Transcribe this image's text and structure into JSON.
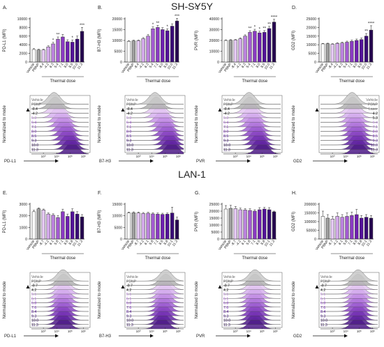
{
  "figure": {
    "top_title": "SH-SY5Y",
    "bottom_title": "LAN-1"
  },
  "colors": {
    "vehicle": "#ffffff",
    "pbnp": "#9e9e9e",
    "grey": "#6e6e6e",
    "palette": [
      "#e4c8f2",
      "#d3a9ea",
      "#bb82dd",
      "#a35bd1",
      "#8a3ac2",
      "#6e1fb0",
      "#54129a",
      "#3a0a78",
      "#260650"
    ],
    "hist_fill": [
      "#c9c9c9",
      "#b0b0b0",
      "#e4c8f2",
      "#d6b0ee",
      "#c593e6",
      "#b47add",
      "#a060d2",
      "#8c48c4",
      "#7834b6",
      "#6426a4",
      "#4f1b88"
    ],
    "dark": "#111111"
  },
  "chart_data": [
    {
      "type": "bar",
      "id": "A",
      "panel_label": "A.",
      "row": 0,
      "ylabel": "PD-L1 (MFI)",
      "ylim": [
        0,
        10000
      ],
      "yticks": [
        0,
        2000,
        4000,
        6000,
        8000,
        10000
      ],
      "categories": [
        "Vehicle",
        "PBNP",
        "-8.4",
        "-4.2",
        "6.3",
        "5.4",
        "7.1",
        "8.0",
        "8.5",
        "10.0",
        "11.3"
      ],
      "values": [
        2900,
        2800,
        2800,
        3500,
        4200,
        5300,
        5800,
        4700,
        4600,
        5300,
        7100
      ],
      "errors": [
        200,
        150,
        150,
        250,
        350,
        500,
        600,
        450,
        500,
        700,
        900
      ],
      "sig": [
        "",
        "",
        "",
        "",
        "*",
        "**",
        "",
        "",
        "*",
        "",
        "***"
      ],
      "xgroup_label": "Thermal dose",
      "hist": {
        "xlabel": "PD-L1",
        "ylabel": "Normalized to mode",
        "top_labels": [
          "Vehicle",
          "PBNP"
        ],
        "labels": [
          "-8.4",
          "-4.2",
          "5.3",
          "6.4",
          "7.1",
          "8.0",
          "8.5",
          "9.3",
          "10.0",
          "11.3"
        ],
        "centers": [
          0.4,
          0.42,
          0.44,
          0.48,
          0.52,
          0.55,
          0.57,
          0.6,
          0.62,
          0.65,
          0.68,
          0.7
        ]
      }
    },
    {
      "type": "bar",
      "id": "B",
      "panel_label": "B.",
      "row": 0,
      "ylabel": "B7-H3 (MFI)",
      "ylim": [
        0,
        20000
      ],
      "yticks": [
        0,
        5000,
        10000,
        15000,
        20000
      ],
      "categories": [
        "Vehicle",
        "PBNP",
        "-8.4",
        "-4.2",
        "6.3",
        "5.4",
        "7.1",
        "8.0",
        "8.5",
        "10.0",
        "11.3"
      ],
      "values": [
        9600,
        9800,
        9900,
        10800,
        12000,
        15400,
        16000,
        15000,
        14500,
        16600,
        19000
      ],
      "errors": [
        300,
        300,
        300,
        500,
        700,
        900,
        1000,
        900,
        900,
        1100,
        1200
      ],
      "sig": [
        "",
        "",
        "",
        "",
        "",
        "*",
        "**",
        "",
        "*",
        "",
        "***"
      ],
      "xgroup_label": "Thermal dose",
      "hist": {
        "xlabel": "B7-H3",
        "ylabel": "Normalized to mode",
        "top_labels": [
          "Vehicle",
          "PBNP"
        ],
        "labels": [
          "-8.4",
          "-4.2",
          "5.3",
          "6.4",
          "7.1",
          "8.0",
          "8.5",
          "9.3",
          "10.0",
          "11.3"
        ],
        "centers": [
          0.5,
          0.52,
          0.55,
          0.58,
          0.62,
          0.65,
          0.67,
          0.7,
          0.72,
          0.74,
          0.76,
          0.78
        ]
      }
    },
    {
      "type": "bar",
      "id": "C",
      "panel_label": "C.",
      "row": 0,
      "ylabel": "PVR (MFI)",
      "ylim": [
        0,
        40000
      ],
      "yticks": [
        0,
        10000,
        20000,
        30000,
        40000
      ],
      "categories": [
        "Vehicle",
        "PBNP",
        "-8.4",
        "-4.2",
        "6.3",
        "5.4",
        "7.1",
        "8.0",
        "8.5",
        "10.0",
        "11.3"
      ],
      "values": [
        20000,
        20200,
        20400,
        21500,
        24000,
        27500,
        28500,
        27000,
        27500,
        31000,
        37000
      ],
      "errors": [
        500,
        500,
        500,
        900,
        1200,
        1500,
        1800,
        1500,
        1600,
        2000,
        2500
      ],
      "sig": [
        "",
        "",
        "",
        "",
        "",
        "**",
        "*",
        "*",
        "**",
        "**",
        "****"
      ],
      "xgroup_label": "Thermal dose",
      "hist": {
        "xlabel": "PVR",
        "ylabel": "Normalized to mode",
        "top_labels": [
          "Vehicle",
          "PBNP"
        ],
        "labels": [
          "-8.4",
          "-4.2",
          "5.3",
          "6.4",
          "7.1",
          "8.0",
          "8.5",
          "9.3",
          "10.0",
          "11.3"
        ],
        "centers": [
          0.45,
          0.46,
          0.47,
          0.49,
          0.51,
          0.53,
          0.55,
          0.57,
          0.59,
          0.61,
          0.64,
          0.67
        ]
      }
    },
    {
      "type": "bar",
      "id": "D",
      "panel_label": "D.",
      "row": 0,
      "ylabel": "GD2 (MFI)",
      "ylim": [
        0,
        25000
      ],
      "yticks": [
        0,
        5000,
        10000,
        15000,
        20000,
        25000
      ],
      "categories": [
        "Vehicle",
        "PBNP",
        "-8.4",
        "-4.2",
        "6.3",
        "5.4",
        "7.1",
        "8.0",
        "8.5",
        "10.0",
        "11.3"
      ],
      "values": [
        10500,
        10600,
        10300,
        10800,
        11000,
        11500,
        12000,
        12500,
        13000,
        15000,
        18500
      ],
      "errors": [
        300,
        300,
        300,
        400,
        500,
        600,
        700,
        800,
        900,
        1500,
        2500
      ],
      "sig": [
        "",
        "",
        "",
        "",
        "",
        "",
        "",
        "",
        "",
        "**",
        "****"
      ],
      "xgroup_label": "Thermal dose",
      "hist": {
        "xlabel": "GD2",
        "ylabel": "Normalized to mode",
        "top_labels": [
          "Vehicle",
          "PBNP",
          "Laser"
        ],
        "labels": [
          "4.2",
          "5.3",
          "6.4",
          "7.1",
          "8.0",
          "8.5",
          "9.3",
          "10.0",
          "11.3"
        ],
        "centers": [
          0.55,
          0.56,
          0.57,
          0.58,
          0.59,
          0.6,
          0.61,
          0.62,
          0.63,
          0.64,
          0.65,
          0.66
        ]
      }
    },
    {
      "type": "bar",
      "id": "E",
      "panel_label": "E.",
      "row": 1,
      "ylabel": "PD-L1 (MFI)",
      "ylim": [
        0,
        3000
      ],
      "yticks": [
        0,
        1000,
        2000,
        3000
      ],
      "categories": [
        "Vehicle",
        "PBNP",
        "-8.7",
        "-4.2",
        "6.1",
        "5.8",
        "7.1",
        "8.5",
        "8.8",
        "10.1",
        "11.3"
      ],
      "values": [
        2350,
        2600,
        2500,
        2150,
        2050,
        1850,
        2350,
        1950,
        2350,
        2150,
        1900
      ],
      "errors": [
        120,
        80,
        80,
        100,
        120,
        180,
        220,
        200,
        250,
        200,
        200
      ],
      "sig": [
        "",
        "",
        "",
        "",
        "",
        "",
        "",
        "",
        "",
        "",
        ""
      ],
      "xgroup_label": "Thermal dose",
      "hist": {
        "xlabel": "PD-L1",
        "ylabel": "Normalized to mode",
        "top_labels": [
          "Vehicle",
          "PBNP"
        ],
        "labels": [
          "-8.7",
          "4.2",
          "5.1",
          "6.1",
          "6.8",
          "7.6",
          "8.4",
          "9.3",
          "10.0",
          "11.3"
        ],
        "centers": [
          0.55,
          0.56,
          0.55,
          0.56,
          0.55,
          0.56,
          0.55,
          0.56,
          0.55,
          0.56,
          0.55,
          0.56
        ]
      }
    },
    {
      "type": "bar",
      "id": "F",
      "panel_label": "F.",
      "row": 1,
      "ylabel": "B7-H3 (MFI)",
      "ylim": [
        0,
        15000
      ],
      "yticks": [
        0,
        5000,
        10000,
        15000
      ],
      "categories": [
        "Vehicle",
        "PBNP",
        "-8.7",
        "-4.2",
        "6.1",
        "5.8",
        "7.1",
        "8.5",
        "8.8",
        "10.1",
        "11.3"
      ],
      "values": [
        11200,
        11300,
        11200,
        11000,
        11100,
        10800,
        10700,
        10600,
        10700,
        11200,
        8200
      ],
      "errors": [
        400,
        400,
        400,
        400,
        400,
        500,
        500,
        500,
        500,
        2500,
        1200
      ],
      "sig": [
        "",
        "",
        "",
        "",
        "",
        "",
        "",
        "",
        "",
        "",
        ""
      ],
      "xgroup_label": "Thermal dose",
      "hist": {
        "xlabel": "B7-H3",
        "ylabel": "Normalized to mode",
        "top_labels": [
          "Vehicle",
          "PBNP"
        ],
        "labels": [
          "-8.7",
          "4.2",
          "5.1",
          "6.1",
          "6.8",
          "7.6",
          "8.4",
          "9.3",
          "10.0",
          "11.3"
        ],
        "centers": [
          0.68,
          0.68,
          0.67,
          0.67,
          0.66,
          0.66,
          0.65,
          0.65,
          0.64,
          0.64,
          0.63,
          0.62
        ]
      }
    },
    {
      "type": "bar",
      "id": "G",
      "panel_label": "G.",
      "row": 1,
      "ylabel": "PVR (MFI)",
      "ylim": [
        0,
        25000
      ],
      "yticks": [
        0,
        5000,
        10000,
        15000,
        20000,
        25000
      ],
      "categories": [
        "Vehicle",
        "PBNP",
        "-8.7",
        "-4.2",
        "6.1",
        "5.8",
        "7.1",
        "8.5",
        "8.8",
        "10.1",
        "11.3"
      ],
      "values": [
        21500,
        22000,
        21800,
        21000,
        20800,
        20500,
        20000,
        21000,
        21500,
        21000,
        19500
      ],
      "errors": [
        2500,
        2200,
        1500,
        1200,
        1000,
        1200,
        1000,
        1500,
        1200,
        1500,
        500
      ],
      "sig": [
        "",
        "",
        "",
        "",
        "",
        "",
        "",
        "",
        "",
        "",
        ""
      ],
      "xgroup_label": "Thermal dose",
      "hist": {
        "xlabel": "PVR",
        "ylabel": "Normalized to mode",
        "top_labels": [
          "Vehicle",
          "PBNP"
        ],
        "labels": [
          "-8.7",
          "4.2",
          "5.1",
          "6.1",
          "6.8",
          "7.6",
          "8.4",
          "9.3",
          "10.0",
          "11.3"
        ],
        "centers": [
          0.55,
          0.55,
          0.55,
          0.55,
          0.55,
          0.55,
          0.55,
          0.55,
          0.55,
          0.55,
          0.55,
          0.55
        ]
      }
    },
    {
      "type": "bar",
      "id": "H",
      "panel_label": "H.",
      "row": 1,
      "ylabel": "GD2 (MFI)",
      "ylim": [
        0,
        200000
      ],
      "yticks": [
        0,
        50000,
        100000,
        150000,
        200000
      ],
      "categories": [
        "Vehicle",
        "PBNP",
        "-8.7",
        "-4.2",
        "6.1",
        "5.8",
        "7.1",
        "8.5",
        "8.8",
        "10.1",
        "11.3"
      ],
      "values": [
        130000,
        120000,
        115000,
        130000,
        125000,
        130000,
        135000,
        140000,
        120000,
        125000,
        120000
      ],
      "errors": [
        30000,
        20000,
        15000,
        20000,
        15000,
        20000,
        20000,
        30000,
        15000,
        15000,
        15000
      ],
      "sig": [
        "",
        "",
        "",
        "",
        "",
        "",
        "",
        "",
        "",
        "",
        ""
      ],
      "xgroup_label": "Thermal dose",
      "hist": {
        "xlabel": "GD2",
        "ylabel": "Normalized to mode",
        "top_labels": [
          "Vehicle",
          "PBNP"
        ],
        "labels": [
          "-8.7",
          "4.2",
          "5.1",
          "6.1",
          "6.8",
          "7.6",
          "8.4",
          "9.3",
          "10.0",
          "11.3"
        ],
        "centers": [
          0.65,
          0.65,
          0.64,
          0.64,
          0.65,
          0.65,
          0.64,
          0.64,
          0.65,
          0.65,
          0.64,
          0.64
        ]
      }
    }
  ]
}
